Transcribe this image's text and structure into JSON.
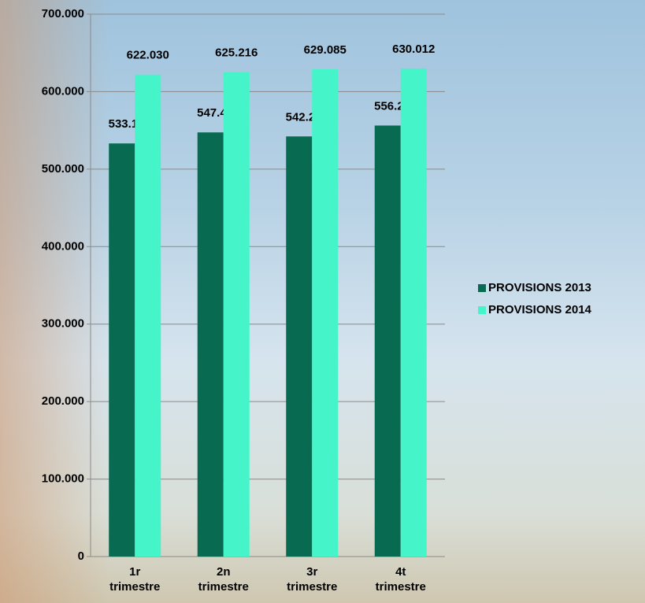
{
  "chart_data": {
    "type": "bar",
    "categories": [
      "1r trimestre",
      "2n trimestre",
      "3r trimestre",
      "4t trimestre"
    ],
    "series": [
      {
        "name": "PROVISIONS 2013",
        "color": "#086a50",
        "values": [
          533178,
          547408,
          542214,
          556265
        ],
        "value_labels": [
          "533.178",
          "547.408",
          "542.214",
          "556.265"
        ]
      },
      {
        "name": "PROVISIONS 2014",
        "color": "#45f5c9",
        "values": [
          622030,
          625216,
          629085,
          630012
        ],
        "value_labels": [
          "622.030",
          "625.216",
          "629.085",
          "630.012"
        ]
      }
    ],
    "ylim": [
      0,
      700000
    ],
    "yticks": [
      0,
      {
        "value": 100000,
        "label": "100.000"
      },
      {
        "value": 200000,
        "label": "200.000"
      },
      {
        "value": 300000,
        "label": "300.000"
      },
      {
        "value": 400000,
        "label": "400.000"
      },
      {
        "value": 500000,
        "label": "500.000"
      },
      {
        "value": 600000,
        "label": "600.000"
      },
      {
        "value": 700000,
        "label": "700.000"
      }
    ],
    "grid": true,
    "legend": "right"
  }
}
